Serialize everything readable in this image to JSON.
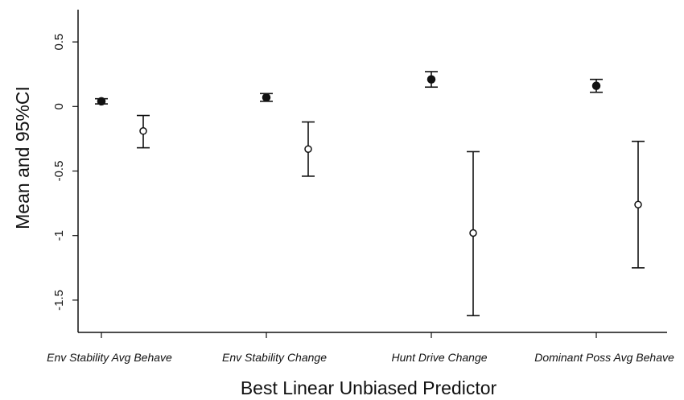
{
  "chart_data": {
    "type": "errorbar",
    "title": "",
    "xlabel": "Best Linear Unbiased Predictor",
    "ylabel": "Mean and 95%CI",
    "ylim": [
      -1.75,
      0.75
    ],
    "yticks": [
      0.5,
      0,
      -0.5,
      -1,
      -1.5
    ],
    "ytick_labels": [
      "0.5",
      "0",
      "-0.5",
      "-1",
      "-1.5"
    ],
    "grid": false,
    "legend": "none",
    "categories": [
      "Env Stability Avg Behave",
      "Env Stability Change",
      "Hunt Drive Change",
      "Dominant Poss Avg Behave"
    ],
    "series": [
      {
        "marker": "filled-circle",
        "color": "#111111",
        "mean": [
          0.04,
          0.07,
          0.21,
          0.16
        ],
        "lower": [
          0.02,
          0.04,
          0.15,
          0.11
        ],
        "upper": [
          0.06,
          0.1,
          0.27,
          0.21
        ]
      },
      {
        "marker": "open-circle",
        "color": "#111111",
        "mean": [
          -0.19,
          -0.33,
          -0.98,
          -0.76
        ],
        "lower": [
          -0.32,
          -0.54,
          -1.62,
          -1.25
        ],
        "upper": [
          -0.07,
          -0.12,
          -0.35,
          -0.27
        ]
      }
    ]
  }
}
